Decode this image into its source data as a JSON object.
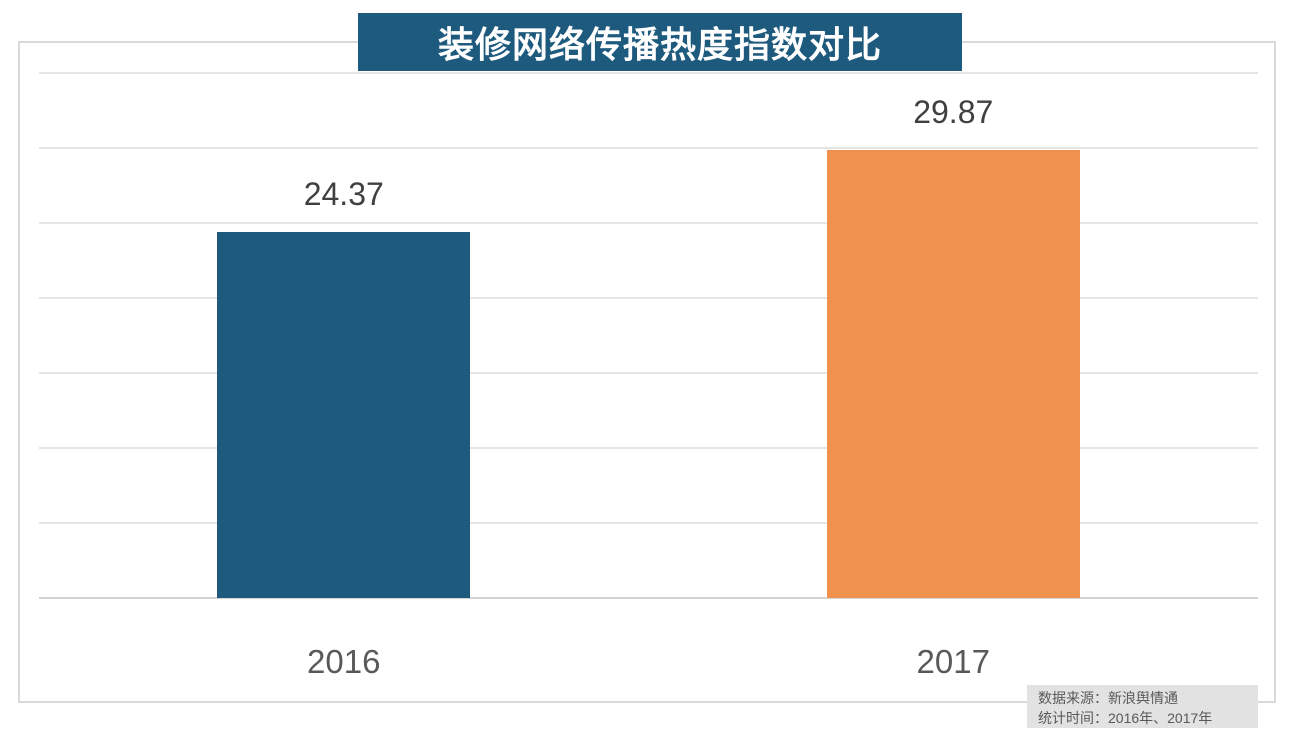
{
  "title": {
    "text": "装修网络传播热度指数对比",
    "bg_color": "#1e5a7d",
    "text_color": "#ffffff"
  },
  "source_note": {
    "line1": "数据来源：新浪舆情通",
    "line2": "统计时间：2016年、2017年",
    "bg_color": "#e2e2e2",
    "text_color": "#595959"
  },
  "chart_data": {
    "type": "bar",
    "title": "装修网络传播热度指数对比",
    "categories": [
      "2016",
      "2017"
    ],
    "values": [
      24.37,
      29.87
    ],
    "value_labels": [
      "24.37",
      "29.87"
    ],
    "bar_colors": [
      "#1e5a7d",
      "#f0914d"
    ],
    "xlabel": "",
    "ylabel": "",
    "ylim": [
      0,
      35
    ],
    "grid_step": 5,
    "grid": true,
    "y_tick_labels_shown": false,
    "legend": "none"
  },
  "style_colors": {
    "gridline": "#e5e5e5",
    "axis_line": "#d4d4d4",
    "frame_border": "#d9d9d9",
    "value_label": "#404040",
    "category_label": "#595959"
  }
}
